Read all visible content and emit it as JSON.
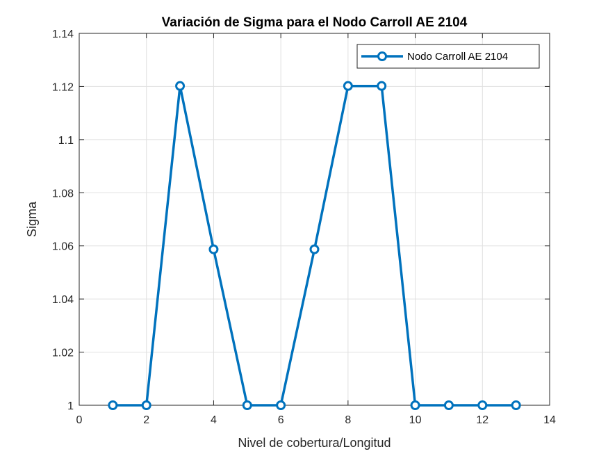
{
  "chart_data": {
    "type": "line",
    "title": "Variación de Sigma para el Nodo Carroll AE 2104",
    "xlabel": "Nivel de cobertura/Longitud",
    "ylabel": "Sigma",
    "xlim": [
      0,
      14
    ],
    "ylim": [
      1,
      1.14
    ],
    "xticks": [
      0,
      2,
      4,
      6,
      8,
      10,
      12,
      14
    ],
    "xtick_labels": [
      "0",
      "2",
      "4",
      "6",
      "8",
      "10",
      "12",
      "14"
    ],
    "yticks": [
      1,
      1.02,
      1.04,
      1.06,
      1.08,
      1.1,
      1.12,
      1.14
    ],
    "ytick_labels": [
      "1",
      "1.02",
      "1.04",
      "1.06",
      "1.08",
      "1.1",
      "1.12",
      "1.14"
    ],
    "grid": true,
    "legend_position": "top-right",
    "series": [
      {
        "name": "Nodo Carroll AE 2104",
        "color": "#0072bd",
        "marker": "circle",
        "x": [
          1,
          2,
          3,
          4,
          5,
          6,
          7,
          8,
          9,
          10,
          11,
          12,
          13
        ],
        "y": [
          1.0,
          1.0,
          1.1202,
          1.0587,
          1.0,
          1.0,
          1.0587,
          1.1202,
          1.1202,
          1.0,
          1.0,
          1.0,
          1.0
        ]
      }
    ]
  }
}
